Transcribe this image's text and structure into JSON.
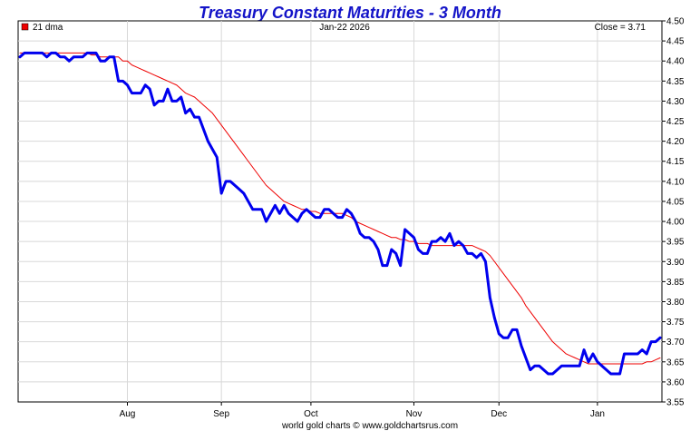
{
  "chart_data": {
    "type": "line",
    "title": "Treasury Constant Maturities - 3 Month",
    "date_label": "Jan-22  2026",
    "close_label": "Close = 3.71",
    "legend": {
      "label": "21 dma",
      "placement": "top-left"
    },
    "footer": "world gold charts © www.goldchartsrus.com",
    "grid": true,
    "ylim": [
      3.55,
      4.5
    ],
    "y_ticks": [
      "4.50",
      "4.45",
      "4.40",
      "4.35",
      "4.30",
      "4.25",
      "4.20",
      "4.15",
      "4.10",
      "4.05",
      "4.00",
      "3.95",
      "3.90",
      "3.85",
      "3.80",
      "3.75",
      "3.70",
      "3.65",
      "3.60",
      "3.55"
    ],
    "x_ticks": [
      {
        "label": "Aug",
        "index": 24
      },
      {
        "label": "Sep",
        "index": 45
      },
      {
        "label": "Oct",
        "index": 65
      },
      {
        "label": "Nov",
        "index": 88
      },
      {
        "label": "Dec",
        "index": 107
      },
      {
        "label": "Jan",
        "index": 129
      }
    ],
    "series": [
      {
        "name": "",
        "color": "#0000ee",
        "values": [
          4.41,
          4.42,
          4.42,
          4.42,
          4.42,
          4.42,
          4.41,
          4.42,
          4.42,
          4.41,
          4.41,
          4.4,
          4.41,
          4.41,
          4.41,
          4.42,
          4.42,
          4.42,
          4.4,
          4.4,
          4.41,
          4.41,
          4.35,
          4.35,
          4.34,
          4.32,
          4.32,
          4.32,
          4.34,
          4.33,
          4.29,
          4.3,
          4.3,
          4.33,
          4.3,
          4.3,
          4.31,
          4.27,
          4.28,
          4.26,
          4.26,
          4.23,
          4.2,
          4.18,
          4.16,
          4.07,
          4.1,
          4.1,
          4.09,
          4.08,
          4.07,
          4.05,
          4.03,
          4.03,
          4.03,
          4.0,
          4.02,
          4.04,
          4.02,
          4.04,
          4.02,
          4.01,
          4.0,
          4.02,
          4.03,
          4.02,
          4.01,
          4.01,
          4.03,
          4.03,
          4.02,
          4.01,
          4.01,
          4.03,
          4.02,
          4.0,
          3.97,
          3.96,
          3.96,
          3.95,
          3.93,
          3.89,
          3.89,
          3.93,
          3.92,
          3.89,
          3.98,
          3.97,
          3.96,
          3.93,
          3.92,
          3.92,
          3.95,
          3.95,
          3.96,
          3.95,
          3.97,
          3.94,
          3.95,
          3.94,
          3.92,
          3.92,
          3.91,
          3.92,
          3.9,
          3.81,
          3.76,
          3.72,
          3.71,
          3.71,
          3.73,
          3.73,
          3.69,
          3.66,
          3.63,
          3.64,
          3.64,
          3.63,
          3.62,
          3.62,
          3.63,
          3.64,
          3.64,
          3.64,
          3.64,
          3.64,
          3.68,
          3.65,
          3.67,
          3.65,
          3.64,
          3.63,
          3.62,
          3.62,
          3.62,
          3.67,
          3.67,
          3.67,
          3.67,
          3.68,
          3.67,
          3.7,
          3.7,
          3.71
        ]
      },
      {
        "name": "21 dma",
        "color": "#ee0000",
        "values": [
          4.42,
          4.42,
          4.42,
          4.42,
          4.42,
          4.42,
          4.42,
          4.42,
          4.42,
          4.42,
          4.42,
          4.42,
          4.42,
          4.42,
          4.42,
          4.42,
          4.415,
          4.415,
          4.41,
          4.41,
          4.41,
          4.41,
          4.41,
          4.4,
          4.4,
          4.39,
          4.385,
          4.38,
          4.375,
          4.37,
          4.365,
          4.36,
          4.355,
          4.35,
          4.345,
          4.34,
          4.33,
          4.32,
          4.315,
          4.31,
          4.3,
          4.29,
          4.28,
          4.27,
          4.255,
          4.24,
          4.225,
          4.21,
          4.195,
          4.18,
          4.165,
          4.15,
          4.135,
          4.12,
          4.105,
          4.09,
          4.08,
          4.07,
          4.06,
          4.05,
          4.045,
          4.04,
          4.035,
          4.03,
          4.03,
          4.025,
          4.025,
          4.02,
          4.02,
          4.02,
          4.02,
          4.02,
          4.02,
          4.015,
          4.01,
          4.0,
          3.995,
          3.99,
          3.985,
          3.98,
          3.975,
          3.97,
          3.965,
          3.96,
          3.96,
          3.955,
          3.955,
          3.95,
          3.95,
          3.945,
          3.945,
          3.945,
          3.94,
          3.94,
          3.94,
          3.94,
          3.94,
          3.94,
          3.94,
          3.94,
          3.94,
          3.94,
          3.935,
          3.93,
          3.925,
          3.915,
          3.9,
          3.885,
          3.87,
          3.855,
          3.84,
          3.825,
          3.81,
          3.79,
          3.775,
          3.76,
          3.745,
          3.73,
          3.715,
          3.7,
          3.69,
          3.68,
          3.67,
          3.665,
          3.66,
          3.655,
          3.65,
          3.645,
          3.645,
          3.645,
          3.645,
          3.645,
          3.645,
          3.645,
          3.645,
          3.645,
          3.645,
          3.645,
          3.645,
          3.645,
          3.65,
          3.65,
          3.655,
          3.66
        ]
      }
    ]
  }
}
